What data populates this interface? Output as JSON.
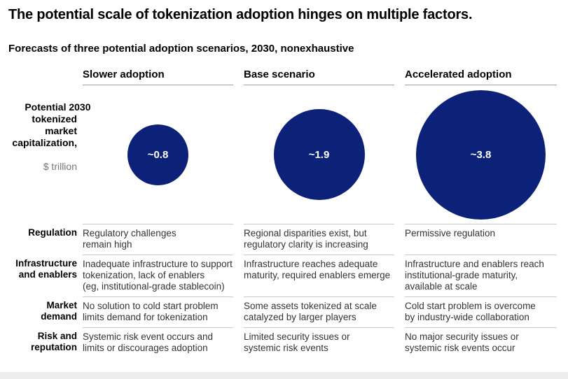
{
  "title": "The potential scale of tokenization adoption hinges on multiple factors.",
  "subtitle": "Forecasts of three potential adoption scenarios, 2030, nonexhaustive",
  "columns": [
    "Slower adoption",
    "Base scenario",
    "Accelerated adoption"
  ],
  "metric": {
    "label": "Potential 2030\ntokenized\nmarket\ncapitalization,",
    "unit": "$ trillion"
  },
  "bubbles": [
    {
      "label": "~0.8",
      "value": 0.8
    },
    {
      "label": "~1.9",
      "value": 1.9
    },
    {
      "label": "~3.8",
      "value": 3.8
    }
  ],
  "rows": [
    {
      "label": "Regulation",
      "cells": [
        "Regulatory challenges\nremain high",
        "Regional disparities exist, but\nregulatory clarity is increasing",
        "Permissive regulation"
      ]
    },
    {
      "label": "Infrastructure\nand enablers",
      "cells": [
        "Inadequate infrastructure to support\ntokenization, lack of enablers\n(eg, institutional-grade stablecoin)",
        "Infrastructure reaches adequate\nmaturity, required enablers emerge",
        "Infrastructure and enablers reach\ninstitutional-grade maturity,\navailable at scale"
      ]
    },
    {
      "label": "Market\ndemand",
      "cells": [
        "No solution to cold start problem\nlimits demand for tokenization",
        "Some assets tokenized at scale\ncatalyzed by larger players",
        "Cold start problem is overcome\nby industry-wide collaboration"
      ]
    },
    {
      "label": "Risk and\nreputation",
      "cells": [
        "Systemic risk event occurs and\nlimits or discourages adoption",
        "Limited security issues or\nsystemic risk events",
        "No major security issues or\nsystemic risk events occur"
      ]
    }
  ],
  "colors": {
    "bubble_fill": "#0c2278",
    "bubble_text": "#ffffff",
    "header_rule": "#9e9e9e",
    "row_rule": "#c8c8c8",
    "cell_text": "#333333",
    "unit_text": "#757575"
  },
  "chart_data": {
    "type": "table",
    "title": "The potential scale of tokenization adoption hinges on multiple factors.",
    "subtitle": "Forecasts of three potential adoption scenarios, 2030, nonexhaustive",
    "columns": [
      "Slower adoption",
      "Base scenario",
      "Accelerated adoption"
    ],
    "bubble_series": {
      "name": "Potential 2030 tokenized market capitalization, $ trillion",
      "values": [
        0.8,
        1.9,
        3.8
      ],
      "labels": [
        "~0.8",
        "~1.9",
        "~3.8"
      ],
      "sizing": "area-proportional circles"
    },
    "rows": [
      {
        "factor": "Regulation",
        "values": [
          "Regulatory challenges remain high",
          "Regional disparities exist, but regulatory clarity is increasing",
          "Permissive regulation"
        ]
      },
      {
        "factor": "Infrastructure and enablers",
        "values": [
          "Inadequate infrastructure to support tokenization, lack of enablers (eg, institutional-grade stablecoin)",
          "Infrastructure reaches adequate maturity, required enablers emerge",
          "Infrastructure and enablers reach institutional-grade maturity, available at scale"
        ]
      },
      {
        "factor": "Market demand",
        "values": [
          "No solution to cold start problem limits demand for tokenization",
          "Some assets tokenized at scale catalyzed by larger players",
          "Cold start problem is overcome by industry-wide collaboration"
        ]
      },
      {
        "factor": "Risk and reputation",
        "values": [
          "Systemic risk event occurs and limits or discourages adoption",
          "Limited security issues or systemic risk events",
          "No major security issues or systemic risk events occur"
        ]
      }
    ]
  }
}
